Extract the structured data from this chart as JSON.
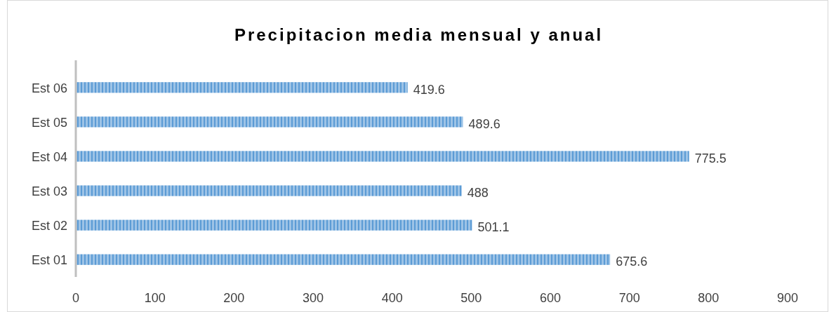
{
  "chart_data": {
    "type": "bar",
    "orientation": "horizontal",
    "title": "Precipitacion media mensual y anual",
    "categories": [
      "Est 06",
      "Est 05",
      "Est 04",
      "Est 03",
      "Est 02",
      "Est 01"
    ],
    "values": [
      419.6,
      489.6,
      775.5,
      488,
      501.1,
      675.6
    ],
    "color": "#9dc3e6",
    "xlim": [
      0,
      900
    ],
    "xticks": [
      0,
      100,
      200,
      300,
      400,
      500,
      600,
      700,
      800,
      900
    ],
    "grid": false,
    "data_labels": true
  }
}
